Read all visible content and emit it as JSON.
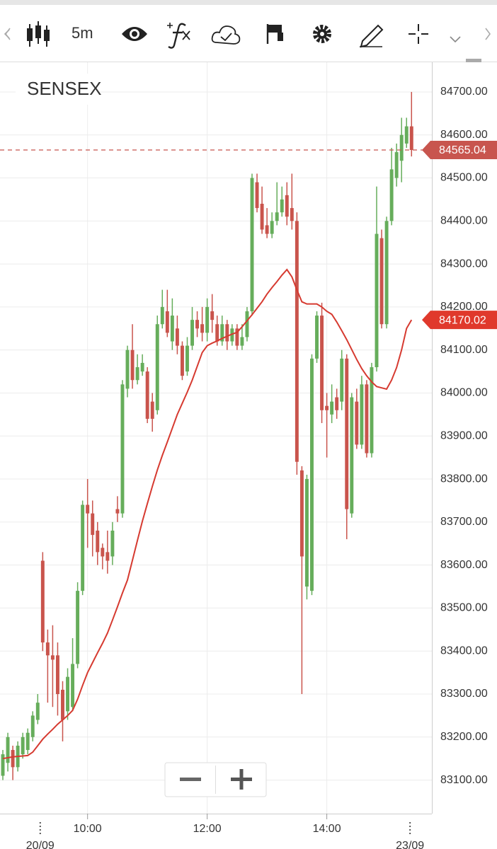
{
  "toolbar": {
    "interval": "5m"
  },
  "chart_data": {
    "type": "candlestick",
    "title": "SENSEX",
    "up_color": "#66ad5b",
    "down_color": "#c9544c",
    "open": [
      83110,
      83140,
      83170,
      83130,
      83160,
      83170,
      83200,
      83240,
      83610,
      83420,
      83390,
      83390,
      83310,
      83260,
      83270,
      83370,
      83540,
      83740,
      83720,
      83680,
      83640,
      83630,
      83620,
      83730,
      83720,
      84010,
      84100,
      84030,
      84050,
      84050,
      83980,
      83960,
      84160,
      84190,
      84120,
      84150,
      84110,
      84050,
      84110,
      84170,
      84160,
      84140,
      84190,
      84160,
      84120,
      84160,
      84120,
      84150,
      84110,
      84130,
      84190,
      84490,
      84440,
      84390,
      84370,
      84400,
      84420,
      84460,
      84430,
      84400,
      83820,
      83550,
      83540,
      84080,
      84180,
      83970,
      83950,
      83990,
      83980,
      84080,
      83720,
      83980,
      83880,
      84020,
      83860,
      84060,
      84360,
      84160,
      84400,
      84500,
      84540,
      84580,
      84620
    ],
    "high": [
      83170,
      83210,
      83180,
      83190,
      83210,
      83220,
      83260,
      83300,
      83630,
      83450,
      83460,
      83420,
      83330,
      83360,
      83430,
      83560,
      83750,
      83800,
      83750,
      83700,
      83650,
      83680,
      83700,
      83760,
      84030,
      84110,
      84160,
      84090,
      84090,
      84060,
      84000,
      84180,
      84240,
      84240,
      84220,
      84180,
      84120,
      84130,
      84200,
      84190,
      84200,
      84220,
      84230,
      84180,
      84180,
      84170,
      84160,
      84160,
      84160,
      84200,
      84510,
      84510,
      84480,
      84430,
      84420,
      84490,
      84480,
      84490,
      84510,
      84420,
      83830,
      83810,
      84090,
      84190,
      84210,
      84000,
      84020,
      84010,
      84100,
      84090,
      84000,
      84010,
      84040,
      84030,
      84070,
      84480,
      84380,
      84410,
      84570,
      84580,
      84640,
      84640,
      84700
    ],
    "low": [
      83100,
      83120,
      83100,
      83120,
      83150,
      83160,
      83190,
      83230,
      83400,
      83280,
      83270,
      83250,
      83190,
      83240,
      83260,
      83360,
      83530,
      83640,
      83620,
      83600,
      83590,
      83580,
      83600,
      83700,
      83710,
      83990,
      84010,
      84020,
      84040,
      83930,
      83910,
      83950,
      84150,
      84130,
      84100,
      84090,
      84030,
      84040,
      84100,
      84130,
      84120,
      84120,
      84140,
      84110,
      84110,
      84100,
      84110,
      84100,
      84100,
      84120,
      84180,
      84420,
      84370,
      84360,
      84360,
      84390,
      84410,
      84390,
      84380,
      83810,
      83300,
      83520,
      83530,
      84070,
      83930,
      83850,
      83930,
      83940,
      83960,
      83660,
      83710,
      83870,
      83870,
      83850,
      83850,
      84050,
      84150,
      84150,
      84390,
      84480,
      84490,
      84570,
      84550
    ],
    "close": [
      83160,
      83200,
      83130,
      83180,
      83200,
      83210,
      83250,
      83280,
      83420,
      83390,
      83380,
      83300,
      83240,
      83340,
      83370,
      83540,
      83740,
      83720,
      83670,
      83630,
      83620,
      83610,
      83680,
      83720,
      84020,
      84100,
      84030,
      84060,
      84070,
      83940,
      83940,
      84160,
      84200,
      84140,
      84180,
      84110,
      84040,
      84110,
      84170,
      84150,
      84140,
      84200,
      84170,
      84120,
      84160,
      84120,
      84150,
      84110,
      84130,
      84190,
      84500,
      84430,
      84380,
      84370,
      84400,
      84420,
      84450,
      84410,
      84400,
      83840,
      83620,
      83800,
      84080,
      84180,
      83960,
      83960,
      83980,
      83960,
      84080,
      83730,
      83990,
      83880,
      84020,
      83860,
      84060,
      84370,
      84160,
      84400,
      84520,
      84560,
      84600,
      84620,
      84565.04
    ],
    "moving_average": {
      "color": "#d63a30",
      "values": [
        83150,
        83152,
        83154,
        83155,
        83156,
        83157,
        83165,
        83180,
        83195,
        83207,
        83218,
        83230,
        83240,
        83250,
        83262,
        83288,
        83320,
        83350,
        83373,
        83396,
        83418,
        83442,
        83472,
        83503,
        83535,
        83565,
        83611,
        83657,
        83702,
        83743,
        83783,
        83821,
        83855,
        83886,
        83918,
        83950,
        83976,
        84002,
        84030,
        84062,
        84094,
        84110,
        84116,
        84121,
        84127,
        84132,
        84137,
        84141,
        84154,
        84168,
        84182,
        84197,
        84212,
        84230,
        84245,
        84259,
        84274,
        84287,
        84270,
        84240,
        84212,
        84207,
        84207,
        84207,
        84200,
        84190,
        84183,
        84165,
        84145,
        84124,
        84101,
        84078,
        84057,
        84040,
        84026,
        84015,
        84012,
        84009,
        84030,
        84059,
        84100,
        84150,
        84170.02
      ]
    },
    "last_price": 84565.04,
    "last_price_color": "#c8554e",
    "ma_label_color": "#e0392c",
    "xlim": [
      -0.57,
      86.08
    ],
    "xticks": [
      {
        "value": 17,
        "label": "10:00"
      },
      {
        "value": 41,
        "label": "12:00"
      },
      {
        "value": 65,
        "label": "14:00"
      }
    ],
    "date_ticks": [
      {
        "value": 7.5,
        "label": "20/09"
      },
      {
        "value": 81.7,
        "label": "23/09"
      }
    ],
    "ylim": [
      83022,
      84769
    ],
    "yticks": [
      {
        "value": 83100,
        "label": "83100.00"
      },
      {
        "value": 83200,
        "label": "83200.00"
      },
      {
        "value": 83300,
        "label": "83300.00"
      },
      {
        "value": 83400,
        "label": "83400.00"
      },
      {
        "value": 83500,
        "label": "83500.00"
      },
      {
        "value": 83600,
        "label": "83600.00"
      },
      {
        "value": 83700,
        "label": "83700.00"
      },
      {
        "value": 83800,
        "label": "83800.00"
      },
      {
        "value": 83900,
        "label": "83900.00"
      },
      {
        "value": 84000,
        "label": "84000.00"
      },
      {
        "value": 84100,
        "label": "84100.00"
      },
      {
        "value": 84200,
        "label": "84200.00"
      },
      {
        "value": 84300,
        "label": "84300.00"
      },
      {
        "value": 84400,
        "label": "84400.00"
      },
      {
        "value": 84500,
        "label": "84500.00"
      },
      {
        "value": 84600,
        "label": "84600.00"
      },
      {
        "value": 84700,
        "label": "84700.00"
      }
    ],
    "grid": true
  }
}
